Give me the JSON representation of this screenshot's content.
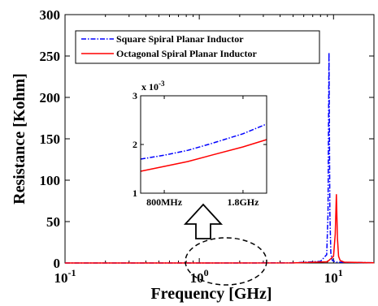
{
  "chart_data": [
    {
      "type": "line",
      "title": "",
      "xlabel": "Frequency [GHz]",
      "ylabel": "Resistance [Kohm]",
      "x_scale": "log",
      "xlim": [
        0.1,
        20
      ],
      "ylim": [
        0,
        300
      ],
      "grid": false,
      "legend_position": "top-left",
      "x_tick_labels": [
        {
          "value": 0.1,
          "base": "10",
          "exp": "-1"
        },
        {
          "value": 1,
          "base": "10",
          "exp": "0"
        },
        {
          "value": 10,
          "base": "10",
          "exp": "1"
        }
      ],
      "y_tick_labels": [
        "0",
        "50",
        "100",
        "150",
        "200",
        "250",
        "300"
      ],
      "series": [
        {
          "name": "Square Spiral Planar Inductor",
          "color": "#0000ff",
          "style": "dash-dot",
          "x": [
            0.1,
            1,
            5,
            8,
            8.9,
            9.1,
            9.25,
            9.4,
            9.55,
            9.8,
            10.5,
            20
          ],
          "y": [
            0.0005,
            0.0019,
            0.1,
            2,
            10,
            60,
            254,
            60,
            12,
            3,
            1,
            0.3
          ]
        },
        {
          "name": "Octagonal Spiral Planar Inductor",
          "color": "#ff0000",
          "style": "solid",
          "x": [
            0.1,
            1,
            5,
            9,
            10,
            10.3,
            10.5,
            10.7,
            10.9,
            11.2,
            12,
            20
          ],
          "y": [
            0.0004,
            0.0017,
            0.1,
            1.5,
            8,
            35,
            83,
            30,
            8,
            3,
            1,
            0.3
          ]
        }
      ]
    },
    {
      "type": "line",
      "title": "",
      "xlabel": "",
      "ylabel": "",
      "multiplier_label": "x 10",
      "multiplier_exp": "-3",
      "x_tick_labels": [
        "800MHz",
        "1.8GHz"
      ],
      "y_tick_labels": [
        "1",
        "2",
        "3"
      ],
      "ylim": [
        1,
        3
      ],
      "series": [
        {
          "name": "Square Spiral Planar Inductor",
          "color": "#0000ff",
          "style": "dash-dot",
          "x": [
            0.5,
            0.8,
            1.1,
            1.4,
            1.8,
            2.1
          ],
          "y": [
            1.7,
            1.78,
            1.88,
            2.02,
            2.22,
            2.42
          ]
        },
        {
          "name": "Octagonal Spiral Planar Inductor",
          "color": "#ff0000",
          "style": "solid",
          "x": [
            0.5,
            0.8,
            1.1,
            1.4,
            1.8,
            2.1
          ],
          "y": [
            1.45,
            1.55,
            1.65,
            1.78,
            1.95,
            2.1
          ]
        }
      ]
    }
  ]
}
